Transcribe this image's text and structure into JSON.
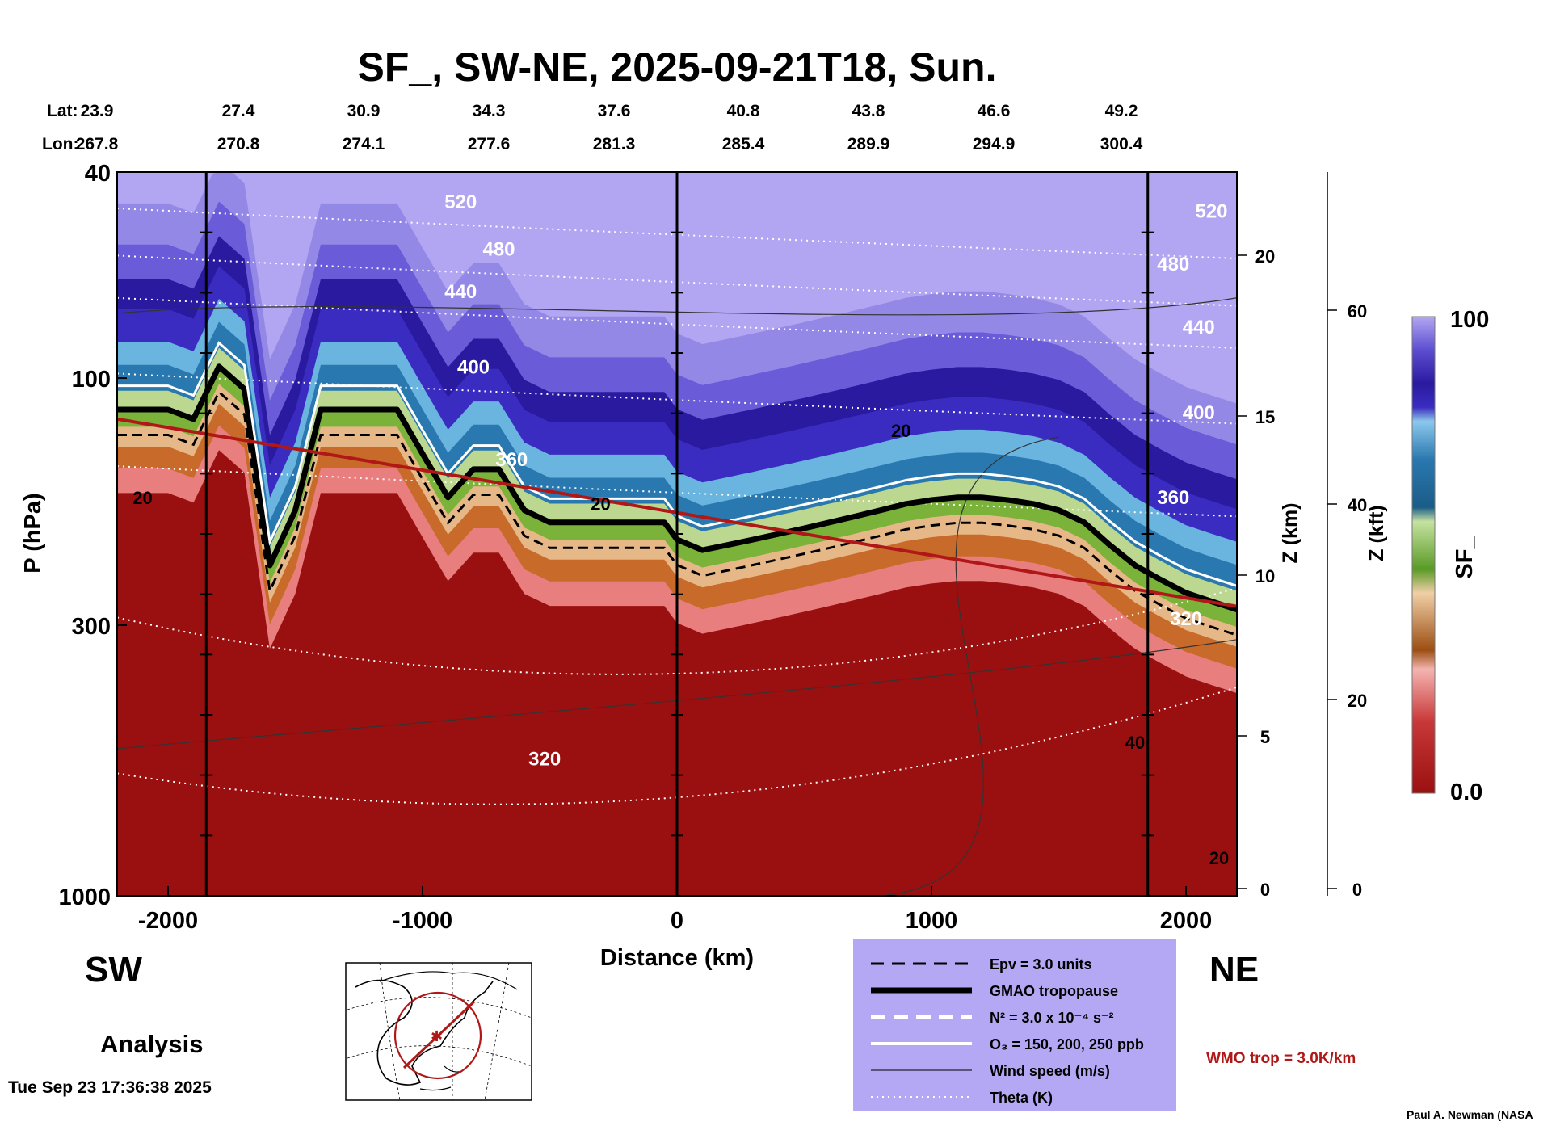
{
  "title": "SF_, SW-NE, 2025-09-21T18, Sun.",
  "lat_label": "Lat:",
  "lon_label": "Lon:",
  "lats": [
    "23.9",
    "27.4",
    "30.9",
    "34.3",
    "37.6",
    "40.8",
    "43.8",
    "46.6",
    "49.2"
  ],
  "lons": [
    "267.8",
    "270.8",
    "274.1",
    "277.6",
    "281.3",
    "285.4",
    "289.9",
    "294.9",
    "300.4"
  ],
  "y_label": "P (hPa)",
  "x_label": "Distance (km)",
  "z_km_label": "Z (km)",
  "z_kft_label": "Z (kft)",
  "colorbar_label": "SF_",
  "colorbar_top": "100",
  "colorbar_bottom": "0.0",
  "sw_label": "SW",
  "ne_label": "NE",
  "analysis_label": "Analysis",
  "timestamp": "Tue Sep 23 17:36:38 2025",
  "credit": "Paul A. Newman (NASA",
  "wmo_label": "WMO trop = 3.0K/km",
  "legend": [
    {
      "style": "black-dash",
      "text": "Epv = 3.0 units"
    },
    {
      "style": "black-thick",
      "text": "GMAO tropopause"
    },
    {
      "style": "white-dash",
      "text": "N² = 3.0 x 10⁻⁴ s⁻²"
    },
    {
      "style": "white-solid",
      "text": "O₃ = 150, 200, 250 ppb"
    },
    {
      "style": "black-thin",
      "text": "Wind speed (m/s)"
    },
    {
      "style": "white-dotted",
      "text": "Theta (K)"
    }
  ],
  "colors": {
    "legend_bg": "#b4a8f4",
    "wmo": "#b01818",
    "strat_top": "#b2a6f2",
    "trop": "#9a1010"
  },
  "chart_data": {
    "type": "heatmap",
    "xlim": [
      -2200,
      2200
    ],
    "ylim_hPa": [
      1000,
      40
    ],
    "x_ticks": [
      -2000,
      -1000,
      0,
      1000,
      2000
    ],
    "p_ticks": [
      40,
      100,
      300,
      1000
    ],
    "zkm_ticks": [
      0,
      5,
      10,
      15,
      20
    ],
    "zkft_ticks": [
      0,
      20,
      40,
      60
    ],
    "vertical_lines_km": [
      -1850,
      0,
      1850
    ],
    "colorbar_range": [
      0.0,
      100
    ],
    "tropopause": {
      "x": [
        -2200,
        -2000,
        -1900,
        -1800,
        -1700,
        -1600,
        -1500,
        -1400,
        -1300,
        -1200,
        -1100,
        -1000,
        -900,
        -800,
        -700,
        -600,
        -500,
        -400,
        -300,
        -200,
        -100,
        -50,
        0,
        100,
        200,
        300,
        400,
        500,
        600,
        700,
        800,
        900,
        1000,
        1100,
        1200,
        1300,
        1400,
        1500,
        1600,
        1700,
        1800,
        1900,
        2000,
        2100,
        2200
      ],
      "p": [
        115,
        115,
        120,
        95,
        105,
        230,
        180,
        115,
        115,
        115,
        115,
        140,
        170,
        150,
        150,
        180,
        190,
        190,
        190,
        190,
        190,
        190,
        205,
        215,
        210,
        205,
        200,
        195,
        190,
        185,
        180,
        175,
        172,
        170,
        170,
        172,
        175,
        180,
        190,
        210,
        230,
        245,
        260,
        270,
        280
      ]
    },
    "theta_labels": [
      {
        "x": -850,
        "p": 47,
        "label": "520"
      },
      {
        "x": -700,
        "p": 58,
        "label": "480"
      },
      {
        "x": -850,
        "p": 70,
        "label": "440"
      },
      {
        "x": -800,
        "p": 98,
        "label": "400"
      },
      {
        "x": -650,
        "p": 148,
        "label": "360"
      },
      {
        "x": -520,
        "p": 560,
        "label": "320"
      },
      {
        "x": 2100,
        "p": 49,
        "label": "520"
      },
      {
        "x": 1950,
        "p": 62,
        "label": "480"
      },
      {
        "x": 2050,
        "p": 82,
        "label": "440"
      },
      {
        "x": 2050,
        "p": 120,
        "label": "400"
      },
      {
        "x": 1950,
        "p": 175,
        "label": "360"
      },
      {
        "x": 2000,
        "p": 300,
        "label": "320"
      }
    ],
    "wind_labels": [
      {
        "x": -2100,
        "p": 175,
        "label": "20"
      },
      {
        "x": -300,
        "p": 180,
        "label": "20"
      },
      {
        "x": 880,
        "p": 130,
        "label": "20"
      },
      {
        "x": 1800,
        "p": 520,
        "label": "40"
      },
      {
        "x": 2130,
        "p": 870,
        "label": "20"
      }
    ]
  }
}
